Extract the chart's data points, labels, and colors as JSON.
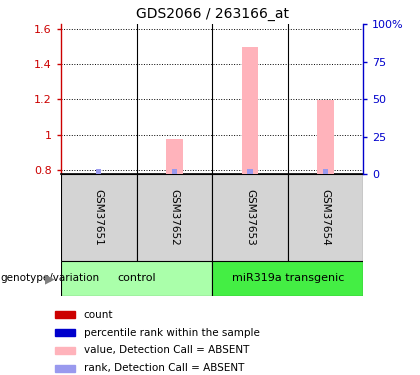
{
  "title": "GDS2066 / 263166_at",
  "samples": [
    "GSM37651",
    "GSM37652",
    "GSM37653",
    "GSM37654"
  ],
  "groups": [
    {
      "label": "control",
      "samples": [
        0,
        1
      ],
      "color": "#aaffaa"
    },
    {
      "label": "miR319a transgenic",
      "samples": [
        2,
        3
      ],
      "color": "#44ee44"
    }
  ],
  "pink_bars": [
    null,
    0.975,
    1.495,
    1.195
  ],
  "blue_bars": [
    0.803,
    0.805,
    0.808,
    0.806
  ],
  "ylim_left": [
    0.775,
    1.625
  ],
  "yticks_left": [
    0.8,
    1.0,
    1.2,
    1.4,
    1.6
  ],
  "ytick_labels_left": [
    "0.8",
    "1",
    "1.2",
    "1.4",
    "1.6"
  ],
  "ylim_right": [
    0,
    105
  ],
  "yticks_right": [
    0,
    25,
    50,
    75,
    100
  ],
  "ytick_labels_right": [
    "0",
    "25",
    "50",
    "75",
    "100%"
  ],
  "pink_color": "#ffb3bb",
  "blue_color": "#9999ee",
  "left_tick_color": "#cc0000",
  "right_tick_color": "#0000cc",
  "sample_bg_color": "#d4d4d4",
  "legend_items": [
    {
      "color": "#cc0000",
      "label": "count"
    },
    {
      "color": "#0000cc",
      "label": "percentile rank within the sample"
    },
    {
      "color": "#ffb3bb",
      "label": "value, Detection Call = ABSENT"
    },
    {
      "color": "#9999ee",
      "label": "rank, Detection Call = ABSENT"
    }
  ],
  "pink_bar_width": 0.22,
  "blue_bar_width": 0.07,
  "group_label": "genotype/variation"
}
